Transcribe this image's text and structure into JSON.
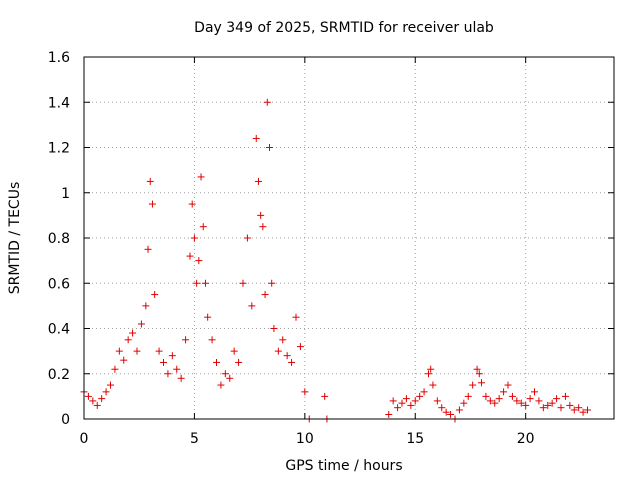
{
  "chart_data": {
    "type": "scatter",
    "title": "Day 349 of 2025, SRMTID for receiver ulab",
    "xlabel": "GPS time / hours",
    "ylabel": "SRMTID / TECUs",
    "xlim": [
      0,
      24
    ],
    "ylim": [
      0,
      1.6
    ],
    "xticks": [
      0,
      5,
      10,
      15,
      20
    ],
    "yticks": [
      0,
      0.2,
      0.4,
      0.6,
      0.8,
      1.0,
      1.2,
      1.4,
      1.6
    ],
    "xtick_labels": [
      "0",
      "5",
      "10",
      "15",
      "20"
    ],
    "ytick_labels": [
      "0",
      "0.2",
      "0.4",
      "0.6",
      "0.8",
      "1",
      "1.2",
      "1.4",
      "1.6"
    ],
    "grid": true,
    "marker": "+",
    "series": [
      {
        "name": "SRMTID",
        "color": "#e00000",
        "x": [
          0.0,
          0.2,
          0.4,
          0.6,
          0.8,
          1.0,
          1.2,
          1.4,
          1.6,
          1.8,
          2.0,
          2.2,
          2.4,
          2.6,
          2.8,
          2.9,
          3.0,
          3.1,
          3.2,
          3.4,
          3.6,
          3.8,
          4.0,
          4.2,
          4.4,
          4.6,
          4.8,
          4.9,
          5.0,
          5.1,
          5.2,
          5.3,
          5.4,
          5.5,
          5.6,
          5.8,
          6.0,
          6.2,
          6.4,
          6.6,
          6.8,
          7.0,
          7.2,
          7.4,
          7.6,
          7.8,
          7.9,
          8.0,
          8.1,
          8.2,
          8.3,
          8.4,
          8.5,
          8.6,
          8.8,
          9.0,
          9.2,
          9.4,
          9.6,
          9.8,
          10.0,
          10.2,
          10.9,
          11.0,
          13.8,
          14.0,
          14.2,
          14.4,
          14.6,
          14.8,
          15.0,
          15.2,
          15.4,
          15.6,
          15.7,
          15.8,
          16.0,
          16.2,
          16.4,
          16.6,
          16.8,
          17.0,
          17.2,
          17.4,
          17.6,
          17.8,
          17.9,
          18.0,
          18.2,
          18.4,
          18.6,
          18.8,
          19.0,
          19.2,
          19.4,
          19.6,
          19.8,
          20.0,
          20.2,
          20.4,
          20.6,
          20.8,
          21.0,
          21.2,
          21.4,
          21.6,
          21.8,
          22.0,
          22.2,
          22.4,
          22.6,
          22.8
        ],
        "values": [
          0.12,
          0.1,
          0.08,
          0.06,
          0.09,
          0.12,
          0.15,
          0.22,
          0.3,
          0.26,
          0.35,
          0.38,
          0.3,
          0.42,
          0.5,
          0.75,
          1.05,
          0.95,
          0.55,
          0.3,
          0.25,
          0.2,
          0.28,
          0.22,
          0.18,
          0.35,
          0.72,
          0.95,
          0.8,
          0.6,
          0.7,
          1.07,
          0.85,
          0.6,
          0.45,
          0.35,
          0.25,
          0.15,
          0.2,
          0.18,
          0.3,
          0.25,
          0.6,
          0.8,
          0.5,
          1.24,
          1.05,
          0.9,
          0.85,
          0.55,
          1.4,
          1.2,
          0.6,
          0.4,
          0.3,
          0.35,
          0.28,
          0.25,
          0.45,
          0.32,
          0.12,
          0.0,
          0.1,
          0.0,
          0.02,
          0.08,
          0.05,
          0.07,
          0.09,
          0.06,
          0.08,
          0.1,
          0.12,
          0.2,
          0.22,
          0.15,
          0.08,
          0.05,
          0.03,
          0.02,
          0.0,
          0.04,
          0.07,
          0.1,
          0.15,
          0.22,
          0.2,
          0.16,
          0.1,
          0.08,
          0.07,
          0.09,
          0.12,
          0.15,
          0.1,
          0.08,
          0.07,
          0.06,
          0.09,
          0.12,
          0.08,
          0.05,
          0.06,
          0.07,
          0.09,
          0.05,
          0.1,
          0.06,
          0.04,
          0.05,
          0.03,
          0.04
        ]
      }
    ]
  }
}
